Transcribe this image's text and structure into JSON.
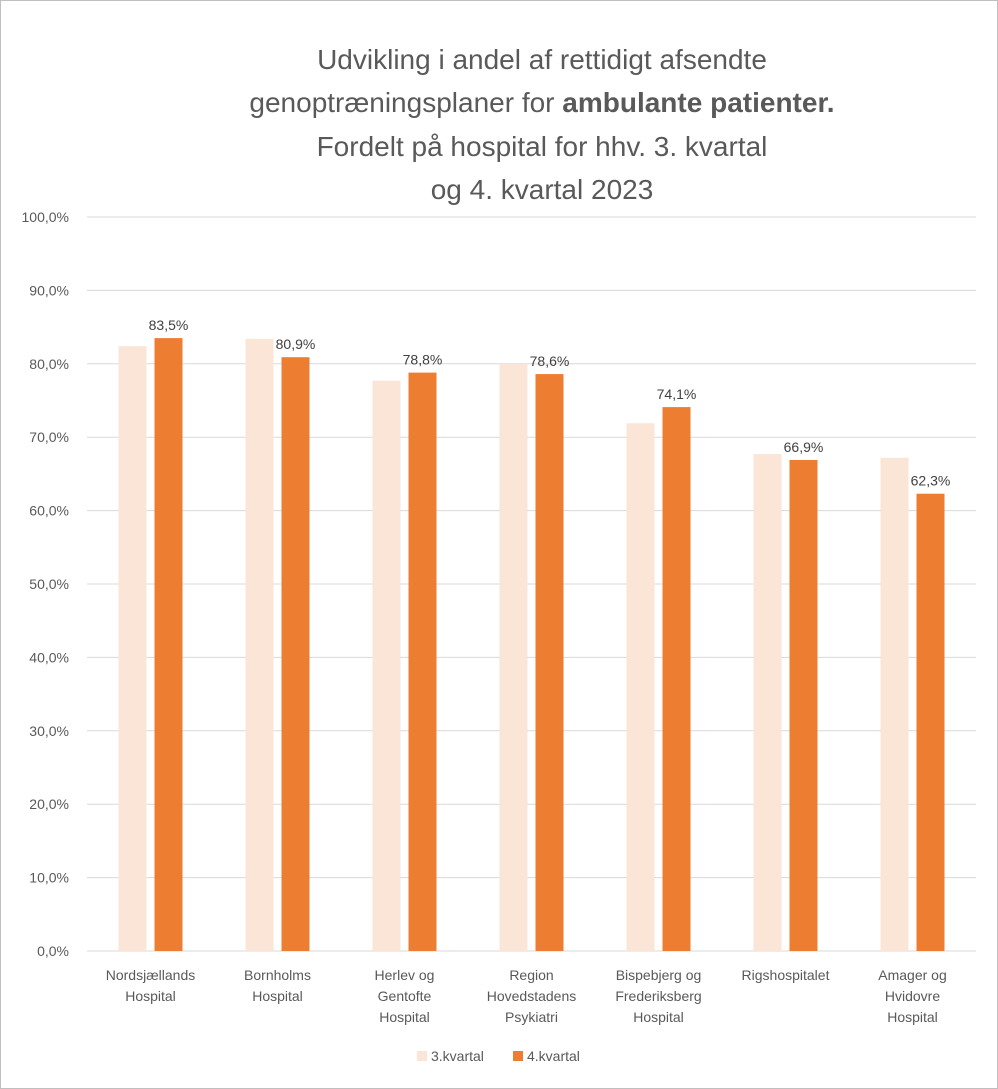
{
  "chart_data": {
    "type": "bar",
    "title_lines": [
      [
        {
          "text": "Udvikling i andel af rettidigt afsendte",
          "bold": false
        }
      ],
      [
        {
          "text": "genoptræningsplaner for ",
          "bold": false
        },
        {
          "text": "ambulante patienter.",
          "bold": true
        }
      ],
      [
        {
          "text": "Fordelt på hospital for hhv. 3. kvartal",
          "bold": false
        }
      ],
      [
        {
          "text": "og 4. kvartal 2023",
          "bold": false
        }
      ]
    ],
    "categories": [
      [
        "Nordsjællands",
        "Hospital"
      ],
      [
        "Bornholms",
        "Hospital"
      ],
      [
        "Herlev og",
        "Gentofte",
        "Hospital"
      ],
      [
        "Region",
        "Hovedstadens",
        "Psykiatri"
      ],
      [
        "Bispebjerg og",
        "Frederiksberg",
        "Hospital"
      ],
      [
        "Rigshospitalet"
      ],
      [
        "Amager og",
        "Hvidovre",
        "Hospital"
      ]
    ],
    "series": [
      {
        "name": "3.kvartal",
        "color": "#fbe5d6",
        "values": [
          82.4,
          83.4,
          77.7,
          80.0,
          71.9,
          67.7,
          67.2
        ],
        "labels": null
      },
      {
        "name": "4.kvartal",
        "color": "#ed7d31",
        "values": [
          83.5,
          80.9,
          78.8,
          78.6,
          74.1,
          66.9,
          62.3
        ],
        "labels": [
          "83,5%",
          "80,9%",
          "78,8%",
          "78,6%",
          "74,1%",
          "66,9%",
          "62,3%"
        ]
      }
    ],
    "ylim": [
      0,
      100
    ],
    "yticks": [
      0,
      10,
      20,
      30,
      40,
      50,
      60,
      70,
      80,
      90,
      100
    ],
    "ytick_labels": [
      "0,0%",
      "10,0%",
      "20,0%",
      "30,0%",
      "40,0%",
      "50,0%",
      "60,0%",
      "70,0%",
      "80,0%",
      "90,0%",
      "100,0%"
    ],
    "grid": true,
    "legend": "bottom",
    "colors": {
      "grid": "#d9d9d9",
      "text": "#595959"
    }
  }
}
